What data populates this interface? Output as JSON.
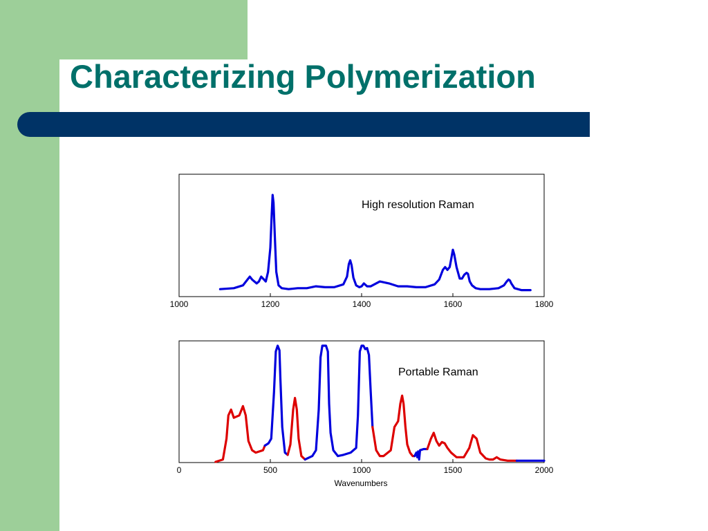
{
  "slide": {
    "title": "Characterizing Polymerization",
    "colors": {
      "background_strip": "#9dcf99",
      "title": "#00706a",
      "bar": "#003366"
    }
  },
  "chart_data": [
    {
      "type": "line",
      "annotation": "High resolution Raman",
      "xlim": [
        1000,
        1800
      ],
      "xticks": [
        1000,
        1200,
        1400,
        1600,
        1800
      ],
      "xlabel": "",
      "ylabel": "",
      "grid": false,
      "series": [
        {
          "color": "#0000dd",
          "x": [
            1090,
            1120,
            1140,
            1150,
            1155,
            1160,
            1170,
            1175,
            1180,
            1190,
            1195,
            1200,
            1203,
            1205,
            1207,
            1210,
            1213,
            1218,
            1225,
            1240,
            1260,
            1280,
            1300,
            1320,
            1340,
            1360,
            1368,
            1372,
            1375,
            1378,
            1382,
            1388,
            1395,
            1400,
            1405,
            1412,
            1420,
            1440,
            1460,
            1480,
            1500,
            1520,
            1540,
            1560,
            1570,
            1578,
            1583,
            1588,
            1593,
            1597,
            1600,
            1603,
            1608,
            1615,
            1620,
            1625,
            1630,
            1633,
            1637,
            1642,
            1650,
            1660,
            1680,
            1700,
            1712,
            1718,
            1722,
            1725,
            1728,
            1735,
            1750,
            1770
          ],
          "y": [
            0.02,
            0.03,
            0.06,
            0.12,
            0.15,
            0.12,
            0.08,
            0.1,
            0.15,
            0.1,
            0.2,
            0.45,
            0.8,
            1.0,
            0.92,
            0.55,
            0.2,
            0.06,
            0.03,
            0.02,
            0.03,
            0.03,
            0.05,
            0.04,
            0.04,
            0.07,
            0.15,
            0.28,
            0.32,
            0.27,
            0.14,
            0.06,
            0.04,
            0.05,
            0.08,
            0.05,
            0.05,
            0.1,
            0.08,
            0.05,
            0.05,
            0.04,
            0.04,
            0.07,
            0.12,
            0.22,
            0.25,
            0.22,
            0.25,
            0.35,
            0.43,
            0.38,
            0.25,
            0.13,
            0.13,
            0.17,
            0.19,
            0.18,
            0.1,
            0.06,
            0.03,
            0.02,
            0.02,
            0.03,
            0.06,
            0.1,
            0.12,
            0.11,
            0.08,
            0.03,
            0.01,
            0.01
          ]
        }
      ]
    },
    {
      "type": "line",
      "annotation": "Portable Raman",
      "xlim": [
        0,
        2000
      ],
      "xticks": [
        0,
        500,
        1000,
        1500,
        2000
      ],
      "xlabel": "Wavenumbers",
      "ylabel": "",
      "grid": false,
      "series": [
        {
          "color": "#dd0000",
          "x": [
            200,
            240,
            260,
            270,
            285,
            300,
            330,
            350,
            365,
            380,
            400,
            420,
            460,
            470
          ],
          "y": [
            0.0,
            0.02,
            0.2,
            0.4,
            0.45,
            0.38,
            0.4,
            0.48,
            0.4,
            0.18,
            0.1,
            0.08,
            0.1,
            0.14
          ]
        },
        {
          "color": "#0000dd",
          "x": [
            470,
            490,
            505,
            520,
            530,
            540,
            550,
            555,
            565,
            580,
            595
          ],
          "y": [
            0.14,
            0.16,
            0.2,
            0.6,
            0.95,
            1.0,
            0.96,
            0.72,
            0.3,
            0.08,
            0.06
          ]
        },
        {
          "color": "#dd0000",
          "x": [
            595,
            610,
            625,
            635,
            645,
            655,
            670,
            690
          ],
          "y": [
            0.06,
            0.15,
            0.45,
            0.55,
            0.45,
            0.2,
            0.05,
            0.02
          ]
        },
        {
          "color": "#0000dd",
          "x": [
            690,
            730,
            750,
            765,
            775,
            785,
            795,
            805,
            815,
            822,
            830,
            845,
            870,
            900,
            940,
            970,
            980,
            990,
            1000,
            1010,
            1020,
            1030,
            1040,
            1050,
            1060
          ],
          "y": [
            0.02,
            0.05,
            0.1,
            0.45,
            0.9,
            1.0,
            1.0,
            1.0,
            0.95,
            0.5,
            0.25,
            0.1,
            0.05,
            0.06,
            0.08,
            0.12,
            0.4,
            0.95,
            1.0,
            1.0,
            0.97,
            0.98,
            0.92,
            0.6,
            0.3
          ]
        },
        {
          "color": "#dd0000",
          "x": [
            1060,
            1080,
            1100,
            1120,
            1160,
            1180,
            1200,
            1212,
            1222,
            1230,
            1240,
            1250,
            1265,
            1280,
            1290
          ],
          "y": [
            0.3,
            0.1,
            0.05,
            0.05,
            0.1,
            0.3,
            0.35,
            0.5,
            0.57,
            0.5,
            0.3,
            0.15,
            0.08,
            0.05,
            0.05
          ]
        },
        {
          "color": "#0000dd",
          "x": [
            1290,
            1300,
            1305,
            1310,
            1315,
            1320,
            1340,
            1360
          ],
          "y": [
            0.05,
            0.08,
            0.04,
            0.09,
            0.02,
            0.1,
            0.11,
            0.11
          ]
        },
        {
          "color": "#dd0000",
          "x": [
            1360,
            1380,
            1395,
            1410,
            1425,
            1440,
            1455,
            1470,
            1490,
            1520,
            1560,
            1590,
            1610,
            1630,
            1650,
            1680,
            1700,
            1720,
            1740,
            1760,
            1800,
            1850
          ],
          "y": [
            0.11,
            0.2,
            0.25,
            0.18,
            0.14,
            0.17,
            0.16,
            0.12,
            0.08,
            0.04,
            0.04,
            0.12,
            0.23,
            0.2,
            0.08,
            0.03,
            0.02,
            0.02,
            0.04,
            0.02,
            0.01,
            0.01
          ]
        },
        {
          "color": "#0000dd",
          "x": [
            1850,
            1900,
            1950,
            2000
          ],
          "y": [
            0.01,
            0.01,
            0.01,
            0.01
          ]
        }
      ]
    }
  ]
}
